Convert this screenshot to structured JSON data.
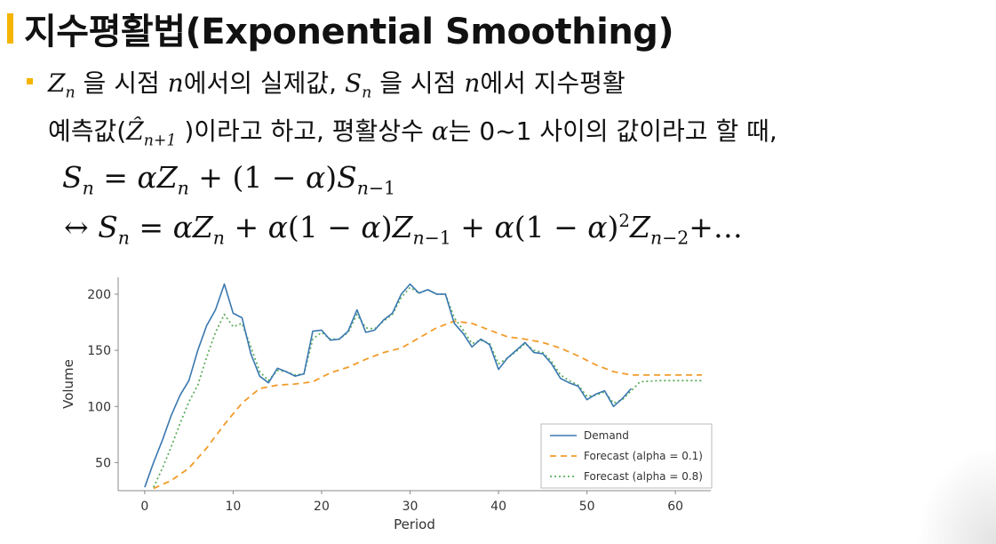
{
  "title": "지수평활법(Exponential Smoothing)",
  "colors": {
    "accent": "#f5b400",
    "demand": "#3a78b0",
    "forecast_01": "#f29b2a",
    "forecast_08": "#5fae5f"
  },
  "text": {
    "l1_a": " 을 시점 ",
    "l1_b": "에서의 실제값, ",
    "l1_c": " 을 시점 ",
    "l1_d": "에서 지수평활",
    "l2_a": "예측값(",
    "l2_b": " )이라고 하고, 평활상수 ",
    "l2_c": "는 0~1 사이의 값이라고 할 때,"
  },
  "equations": {
    "eq1": "S_n = αZ_n + (1 − α)S_{n−1}",
    "eq2": "↔ S_n = αZ_n + α(1 − α)Z_{n−1} + α(1 − α)^2 Z_{n−2} + …"
  },
  "chart_data": {
    "type": "line",
    "xlabel": "Period",
    "ylabel": "Volume",
    "xlim": [
      -3,
      64
    ],
    "ylim": [
      25,
      215
    ],
    "xticks": [
      0,
      10,
      20,
      30,
      40,
      50,
      60
    ],
    "yticks": [
      50,
      100,
      150,
      200
    ],
    "legend_position": "lower-right",
    "series": [
      {
        "name": "Demand",
        "style": "solid",
        "x": [
          0,
          1,
          2,
          3,
          4,
          5,
          6,
          7,
          8,
          9,
          10,
          11,
          12,
          13,
          14,
          15,
          16,
          17,
          18,
          19,
          20,
          21,
          22,
          23,
          24,
          25,
          26,
          27,
          28,
          29,
          30,
          31,
          32,
          33,
          34,
          35,
          36,
          37,
          38,
          39,
          40,
          41,
          42,
          43,
          44,
          45,
          46,
          47,
          48,
          49,
          50,
          51,
          52,
          53,
          54,
          55
        ],
        "y": [
          28,
          50,
          70,
          92,
          110,
          123,
          150,
          172,
          186,
          209,
          183,
          179,
          147,
          127,
          121,
          134,
          131,
          127,
          129,
          167,
          168,
          159,
          160,
          167,
          186,
          166,
          168,
          177,
          183,
          200,
          209,
          201,
          204,
          200,
          200,
          174,
          165,
          153,
          160,
          155,
          133,
          143,
          150,
          157,
          148,
          147,
          138,
          125,
          121,
          118,
          106,
          111,
          114,
          100,
          107,
          116
        ]
      },
      {
        "name": "Forecast (alpha = 0.1)",
        "style": "dashed",
        "x": [
          1,
          3,
          5,
          7,
          9,
          11,
          13,
          15,
          17,
          19,
          21,
          23,
          25,
          27,
          29,
          31,
          33,
          35,
          37,
          39,
          41,
          43,
          45,
          47,
          49,
          51,
          53,
          55,
          57,
          59,
          61,
          63
        ],
        "y": [
          27,
          34,
          45,
          63,
          84,
          103,
          116,
          119,
          120,
          122,
          130,
          135,
          142,
          148,
          152,
          161,
          170,
          176,
          174,
          168,
          162,
          160,
          157,
          152,
          145,
          137,
          131,
          128,
          128,
          128,
          128,
          128
        ]
      },
      {
        "name": "Forecast (alpha = 0.8)",
        "style": "dotted",
        "x": [
          1,
          2,
          3,
          4,
          5,
          6,
          7,
          8,
          9,
          10,
          11,
          12,
          13,
          14,
          15,
          16,
          17,
          18,
          19,
          20,
          21,
          22,
          23,
          24,
          25,
          26,
          27,
          28,
          29,
          30,
          31,
          32,
          33,
          34,
          35,
          36,
          37,
          38,
          39,
          40,
          41,
          42,
          43,
          44,
          45,
          46,
          47,
          48,
          49,
          50,
          51,
          52,
          53,
          54,
          55,
          56,
          58,
          60,
          62,
          63
        ],
        "y": [
          28,
          45,
          64,
          85,
          104,
          119,
          144,
          166,
          182,
          171,
          174,
          153,
          131,
          123,
          132,
          131,
          128,
          129,
          160,
          166,
          160,
          160,
          166,
          182,
          170,
          169,
          176,
          182,
          197,
          206,
          201,
          204,
          200,
          200,
          179,
          168,
          156,
          159,
          156,
          138,
          143,
          149,
          156,
          150,
          148,
          140,
          128,
          123,
          119,
          109,
          110,
          113,
          103,
          106,
          114,
          122,
          123,
          123,
          123,
          123
        ]
      }
    ]
  }
}
